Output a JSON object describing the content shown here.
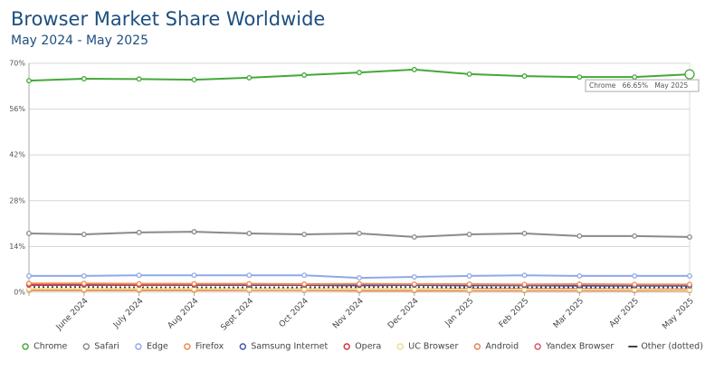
{
  "chart_data": {
    "type": "line",
    "title": "Browser Market Share Worldwide",
    "subtitle": "May 2024 - May 2025",
    "categories": [
      null,
      "June 2024",
      "July 2024",
      "Aug 2024",
      "Sept 2024",
      "Oct 2024",
      "Nov 2024",
      "Dec 2024",
      "Jan 2025",
      "Feb 2025",
      "Mar 2025",
      "Apr 2025",
      "May 2025"
    ],
    "series": [
      {
        "name": "Chrome",
        "color": "#44a83a",
        "values": [
          64.7,
          65.3,
          65.2,
          65.0,
          65.6,
          66.4,
          67.2,
          68.1,
          66.7,
          66.1,
          65.8,
          65.8,
          66.65
        ]
      },
      {
        "name": "Safari",
        "color": "#8a8a8a",
        "values": [
          18.0,
          17.7,
          18.3,
          18.5,
          18.0,
          17.7,
          18.0,
          16.9,
          17.7,
          18.0,
          17.2,
          17.2,
          16.9
        ]
      },
      {
        "name": "Edge",
        "color": "#8faae6",
        "values": [
          5.0,
          5.0,
          5.2,
          5.2,
          5.2,
          5.2,
          4.4,
          4.7,
          5.0,
          5.2,
          5.0,
          5.0,
          5.0
        ]
      },
      {
        "name": "Firefox",
        "color": "#f08a4b",
        "values": [
          2.7,
          2.7,
          2.6,
          2.6,
          2.6,
          2.5,
          2.6,
          2.5,
          2.5,
          2.4,
          2.5,
          2.4,
          2.4
        ]
      },
      {
        "name": "Samsung Internet",
        "color": "#3f51b5",
        "values": [
          2.6,
          2.5,
          2.5,
          2.4,
          2.3,
          2.3,
          2.2,
          2.2,
          2.1,
          2.1,
          2.0,
          2.0,
          2.0
        ]
      },
      {
        "name": "Opera",
        "color": "#d9303a",
        "values": [
          2.2,
          2.2,
          2.2,
          2.2,
          2.2,
          2.2,
          2.1,
          2.2,
          2.3,
          2.3,
          2.1,
          2.1,
          2.1
        ]
      },
      {
        "name": "UC Browser",
        "color": "#eedd88",
        "values": [
          1.0,
          1.0,
          1.0,
          1.0,
          0.9,
          0.9,
          0.9,
          0.9,
          0.8,
          0.8,
          0.8,
          0.8,
          0.7
        ]
      },
      {
        "name": "Android",
        "color": "#e8804a",
        "values": [
          0.6,
          0.6,
          0.6,
          0.6,
          0.6,
          0.6,
          0.5,
          0.5,
          0.5,
          0.5,
          0.5,
          0.5,
          0.5
        ]
      },
      {
        "name": "Yandex Browser",
        "color": "#e0506a",
        "values": [
          0.9,
          0.9,
          0.9,
          0.9,
          0.9,
          0.9,
          0.9,
          0.9,
          1.0,
          1.0,
          1.0,
          0.9,
          0.9
        ]
      },
      {
        "name": "Other (dotted)",
        "color": "#444444",
        "dotted": true,
        "values": [
          1.6,
          1.6,
          1.5,
          1.5,
          1.5,
          1.5,
          1.6,
          1.6,
          1.5,
          1.5,
          1.5,
          1.5,
          1.5
        ]
      }
    ],
    "tooltip": "Chrome   66.65%   May 2025",
    "ylim": [
      0,
      70
    ],
    "yticks": [
      {
        "value": 0,
        "label": "0%"
      },
      {
        "value": 14,
        "label": "14%"
      },
      {
        "value": 28,
        "label": "28%"
      },
      {
        "value": 42,
        "label": "42%"
      },
      {
        "value": 56,
        "label": "56%"
      },
      {
        "value": 70,
        "label": "70%"
      }
    ],
    "grid": true
  }
}
